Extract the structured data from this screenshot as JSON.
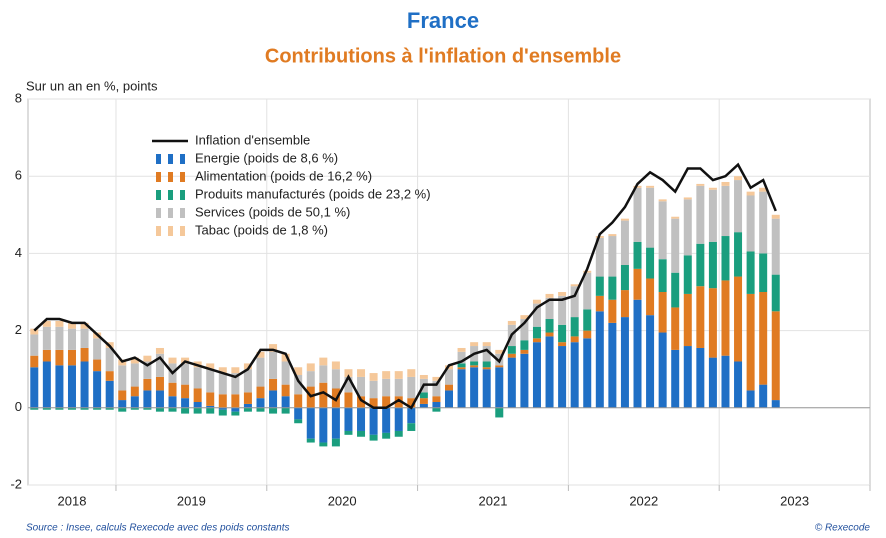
{
  "chart_data": {
    "type": "combo",
    "title": "France",
    "subtitle": "Contributions à l'inflation d'ensemble",
    "y_label": "Sur un an en %, points",
    "source": "Source : Insee, calculs Rexecode avec des poids constants",
    "credit": "© Rexecode",
    "year_labels": [
      "2018",
      "2019",
      "2020",
      "2021",
      "2022",
      "2023"
    ],
    "categories": [
      null,
      null,
      null,
      null,
      null,
      null,
      null,
      null,
      null,
      null,
      null,
      null,
      null,
      null,
      null,
      null,
      null,
      null,
      null,
      null,
      null,
      null,
      null,
      null,
      null,
      null,
      null,
      null,
      null,
      null,
      null,
      null,
      null,
      null,
      null,
      null,
      null,
      null,
      null,
      null,
      null,
      null,
      null,
      null,
      null,
      null,
      null,
      null,
      null,
      null,
      null,
      null,
      null,
      null,
      null,
      null,
      null,
      null,
      null,
      null
    ],
    "ylim": [
      -2,
      8
    ],
    "yticks": [
      -2,
      0,
      2,
      4,
      6,
      8
    ],
    "grid": true,
    "stacked": true,
    "series": [
      {
        "name": "Inflation d'ensemble",
        "type": "line",
        "color": "#111111",
        "values": [
          2.0,
          2.3,
          2.3,
          2.2,
          2.2,
          1.9,
          1.6,
          1.2,
          1.3,
          1.1,
          1.3,
          0.9,
          1.2,
          1.1,
          1.0,
          0.9,
          0.8,
          1.0,
          1.5,
          1.5,
          1.4,
          0.7,
          0.3,
          0.4,
          0.2,
          0.8,
          0.2,
          0.0,
          0.0,
          0.2,
          0.0,
          0.6,
          0.6,
          1.1,
          1.2,
          1.4,
          1.5,
          1.2,
          1.9,
          2.2,
          2.6,
          2.8,
          2.8,
          2.9,
          3.6,
          4.5,
          4.8,
          5.2,
          5.8,
          6.1,
          5.9,
          5.6,
          6.2,
          6.2,
          5.9,
          6.0,
          6.3,
          5.7,
          5.9,
          5.1
        ]
      },
      {
        "name": "Energie (poids de 8,6 %)",
        "type": "bar",
        "color": "#1f6fc5",
        "values": [
          1.05,
          1.2,
          1.1,
          1.1,
          1.2,
          0.95,
          0.7,
          0.2,
          0.3,
          0.45,
          0.45,
          0.3,
          0.25,
          0.15,
          0.05,
          -0.05,
          -0.1,
          0.1,
          0.25,
          0.45,
          0.3,
          -0.3,
          -0.8,
          -0.9,
          -0.8,
          -0.6,
          -0.6,
          -0.7,
          -0.65,
          -0.6,
          -0.4,
          0.1,
          0.15,
          0.45,
          1.0,
          1.05,
          1.0,
          1.05,
          1.3,
          1.4,
          1.7,
          1.85,
          1.6,
          1.7,
          1.8,
          2.5,
          2.2,
          2.35,
          2.8,
          2.4,
          1.95,
          1.5,
          1.6,
          1.55,
          1.3,
          1.35,
          1.2,
          0.45,
          0.6,
          0.2
        ]
      },
      {
        "name": "Alimentation (poids de 16,2 %)",
        "type": "bar",
        "color": "#e07b22",
        "values": [
          0.3,
          0.3,
          0.4,
          0.4,
          0.35,
          0.3,
          0.25,
          0.25,
          0.25,
          0.3,
          0.35,
          0.35,
          0.35,
          0.35,
          0.35,
          0.35,
          0.35,
          0.3,
          0.3,
          0.3,
          0.3,
          0.35,
          0.55,
          0.65,
          0.5,
          0.4,
          0.3,
          0.25,
          0.3,
          0.3,
          0.25,
          0.15,
          0.15,
          0.15,
          0.05,
          0.05,
          0.05,
          0.05,
          0.1,
          0.1,
          0.1,
          0.1,
          0.1,
          0.15,
          0.2,
          0.4,
          0.6,
          0.7,
          0.8,
          0.95,
          1.05,
          1.1,
          1.35,
          1.6,
          1.8,
          1.95,
          2.2,
          2.5,
          2.4,
          2.3
        ]
      },
      {
        "name": "Produits manufacturés (poids de 23,2 %)",
        "type": "bar",
        "color": "#1a9e7e",
        "values": [
          -0.05,
          -0.05,
          -0.05,
          -0.05,
          -0.05,
          -0.05,
          -0.05,
          -0.1,
          -0.05,
          -0.05,
          -0.1,
          -0.1,
          -0.15,
          -0.15,
          -0.15,
          -0.15,
          -0.1,
          -0.1,
          -0.1,
          -0.15,
          -0.15,
          -0.1,
          -0.1,
          -0.1,
          -0.2,
          -0.1,
          -0.15,
          -0.15,
          -0.15,
          -0.15,
          -0.2,
          0.15,
          -0.1,
          0.0,
          0.1,
          0.1,
          0.15,
          -0.25,
          0.2,
          0.25,
          0.3,
          0.35,
          0.45,
          0.5,
          0.55,
          0.5,
          0.6,
          0.65,
          0.7,
          0.8,
          0.85,
          0.9,
          1.0,
          1.1,
          1.2,
          1.15,
          1.15,
          1.1,
          1.0,
          0.95
        ]
      },
      {
        "name": "Services (poids de 50,1 %)",
        "type": "bar",
        "color": "#c0c0c0",
        "values": [
          0.55,
          0.6,
          0.6,
          0.55,
          0.5,
          0.55,
          0.6,
          0.65,
          0.6,
          0.45,
          0.6,
          0.5,
          0.55,
          0.55,
          0.6,
          0.55,
          0.55,
          0.6,
          0.75,
          0.7,
          0.6,
          0.5,
          0.4,
          0.45,
          0.5,
          0.4,
          0.5,
          0.45,
          0.45,
          0.45,
          0.55,
          0.35,
          0.4,
          0.4,
          0.3,
          0.4,
          0.4,
          0.3,
          0.55,
          0.55,
          0.6,
          0.55,
          0.75,
          0.8,
          0.95,
          1.0,
          1.05,
          1.15,
          1.4,
          1.55,
          1.5,
          1.4,
          1.45,
          1.5,
          1.35,
          1.3,
          1.35,
          1.45,
          1.6,
          1.45
        ]
      },
      {
        "name": "Tabac (poids de 1,8 %)",
        "type": "bar",
        "color": "#f5c89a",
        "values": [
          0.15,
          0.15,
          0.15,
          0.15,
          0.15,
          0.15,
          0.15,
          0.15,
          0.15,
          0.15,
          0.15,
          0.15,
          0.15,
          0.15,
          0.15,
          0.15,
          0.15,
          0.15,
          0.15,
          0.2,
          0.2,
          0.2,
          0.2,
          0.2,
          0.2,
          0.2,
          0.2,
          0.2,
          0.2,
          0.2,
          0.2,
          0.1,
          0.1,
          0.1,
          0.1,
          0.1,
          0.1,
          0.1,
          0.1,
          0.1,
          0.1,
          0.1,
          0.1,
          0.05,
          0.05,
          0.05,
          0.05,
          0.05,
          0.05,
          0.05,
          0.05,
          0.05,
          0.05,
          0.05,
          0.05,
          0.1,
          0.1,
          0.1,
          0.1,
          0.1
        ]
      }
    ]
  }
}
